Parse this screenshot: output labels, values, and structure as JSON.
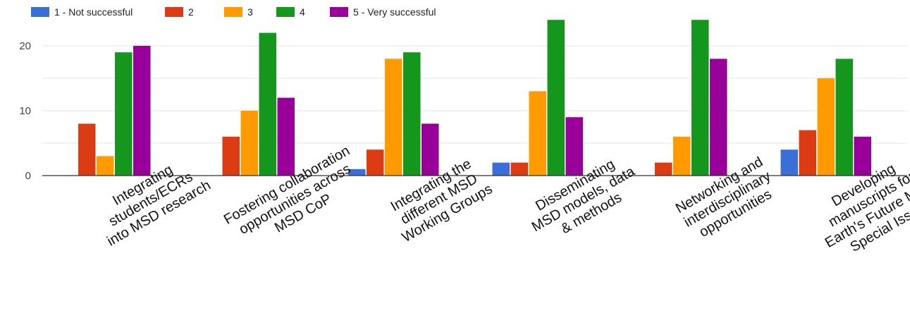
{
  "chart_data": {
    "type": "bar",
    "title": "",
    "xlabel": "",
    "ylabel": "",
    "ylim": [
      0,
      25
    ],
    "yticks": [
      0,
      10,
      20
    ],
    "grid": true,
    "legend_position": "top-left",
    "categories": [
      [
        "Integrating",
        "students/ECRs",
        "into MSD research"
      ],
      [
        "Fostering collaboration",
        "opportunities across",
        "MSD CoP"
      ],
      [
        "Integrating the",
        "different MSD",
        "Working Groups"
      ],
      [
        "Disseminating",
        "MSD models, data",
        "& methods"
      ],
      [
        "Networking and",
        "interdisciplinary",
        "opportunities"
      ],
      [
        "Developing",
        "manuscripts for",
        "Earth's Future MSD",
        "Special Issue"
      ]
    ],
    "series": [
      {
        "name": "1 - Not successful",
        "color": "#3a6fd8",
        "values": [
          0,
          0,
          1,
          2,
          0,
          4
        ]
      },
      {
        "name": "2",
        "color": "#dc3c14",
        "values": [
          8,
          6,
          4,
          2,
          2,
          7
        ]
      },
      {
        "name": "3",
        "color": "#ff9a00",
        "values": [
          3,
          10,
          18,
          13,
          6,
          15
        ]
      },
      {
        "name": "4",
        "color": "#15961d",
        "values": [
          19,
          22,
          19,
          24,
          24,
          18
        ]
      },
      {
        "name": "5 - Very successful",
        "color": "#990099",
        "values": [
          20,
          12,
          8,
          9,
          18,
          6
        ]
      }
    ]
  }
}
